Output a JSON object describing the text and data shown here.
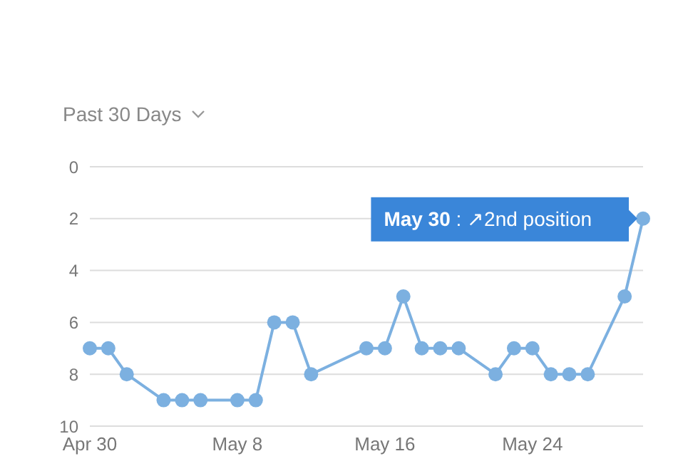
{
  "chart_data": {
    "type": "line",
    "subtitle": "Past 30 Days",
    "x": [
      "--04-30",
      "--05-01",
      "--05-02",
      "--05-04",
      "--05-05",
      "--05-06",
      "--05-08",
      "--05-09",
      "--05-10",
      "--05-11",
      "--05-12",
      "--05-15",
      "--05-16",
      "--05-17",
      "--05-18",
      "--05-19",
      "--05-20",
      "--05-22",
      "--05-23",
      "--05-24",
      "--05-25",
      "--05-26",
      "--05-27",
      "--05-29",
      "--05-30"
    ],
    "series": [
      {
        "color": "#7cb0e0",
        "values": [
          7,
          7,
          8,
          9,
          9,
          9,
          9,
          9,
          6,
          6,
          8,
          7,
          7,
          5,
          7,
          7,
          7,
          8,
          7,
          7,
          8,
          8,
          8,
          5,
          2
        ]
      }
    ],
    "xlim": [
      "--04-30",
      "--05-30"
    ],
    "xticks": [
      {
        "value": "--04-30",
        "label": "Apr 30"
      },
      {
        "value": "--05-08",
        "label": "May 8"
      },
      {
        "value": "--05-16",
        "label": "May 16"
      },
      {
        "value": "--05-24",
        "label": "May 24"
      }
    ],
    "ylim": [
      10,
      0
    ],
    "yticks": [
      0,
      2,
      4,
      6,
      8,
      10
    ],
    "grid": "y",
    "marker": "circle",
    "line_style": "solid",
    "annotations": [
      {
        "text": "May 30 : ↗2nd position",
        "x": "--05-30",
        "y": 2
      }
    ]
  }
}
